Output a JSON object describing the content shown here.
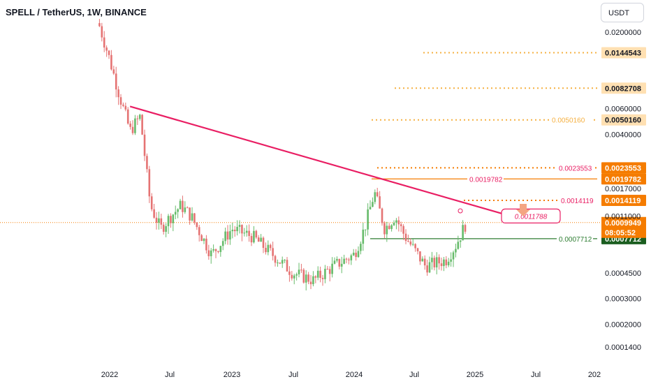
{
  "header": {
    "title": "SPELL / TetherUS, 1W, BINANCE",
    "currency": "USDT"
  },
  "colors": {
    "up": "#26a69a",
    "down": "#ef5350",
    "upSoft": "#66bb6a",
    "downSoft": "#e57373",
    "trend": "#e91e63",
    "orange": "#f57c00",
    "gold": "#f5b041",
    "pink": "#e91e63",
    "green": "#2e7d32",
    "darkgreen": "#1b5e20"
  },
  "chart_data": {
    "type": "candlestick",
    "scale": "log",
    "ylim": [
      0.00012,
      0.026
    ],
    "x_ticks": [
      "2022",
      "Jul",
      "2023",
      "Jul",
      "2024",
      "Jul",
      "2025",
      "Jul",
      "202"
    ],
    "y_ticks": [
      "0.0200000",
      "0.0060000",
      "0.0040000",
      "0.0017000",
      "0.0011000",
      "0.0004500",
      "0.0003000",
      "0.0002000",
      "0.0001400"
    ],
    "y_tick_values": [
      0.02,
      0.006,
      0.004,
      0.0017,
      0.0011,
      0.00045,
      0.0003,
      0.0002,
      0.00014
    ],
    "price_path": [
      {
        "date": "2021-12",
        "price": 0.022
      },
      {
        "date": "2022-01",
        "price": 0.013
      },
      {
        "date": "2022-02",
        "price": 0.0072
      },
      {
        "date": "2022-03",
        "price": 0.0042
      },
      {
        "date": "2022-04",
        "price": 0.0053
      },
      {
        "date": "2022-05",
        "price": 0.0013
      },
      {
        "date": "2022-06",
        "price": 0.0009
      },
      {
        "date": "2022-07",
        "price": 0.0011
      },
      {
        "date": "2022-08",
        "price": 0.0013
      },
      {
        "date": "2022-09",
        "price": 0.0011
      },
      {
        "date": "2022-11",
        "price": 0.0006
      },
      {
        "date": "2023-01",
        "price": 0.0009
      },
      {
        "date": "2023-03",
        "price": 0.0008
      },
      {
        "date": "2023-05",
        "price": 0.0006
      },
      {
        "date": "2023-07",
        "price": 0.00045
      },
      {
        "date": "2023-09",
        "price": 0.0004
      },
      {
        "date": "2023-11",
        "price": 0.0005
      },
      {
        "date": "2024-01",
        "price": 0.0006
      },
      {
        "date": "2024-02",
        "price": 0.0009
      },
      {
        "date": "2024-03",
        "price": 0.0016
      },
      {
        "date": "2024-04",
        "price": 0.0009
      },
      {
        "date": "2024-05",
        "price": 0.0011
      },
      {
        "date": "2024-06",
        "price": 0.0008
      },
      {
        "date": "2024-08",
        "price": 0.0005
      },
      {
        "date": "2024-10",
        "price": 0.00055
      },
      {
        "date": "2024-11",
        "price": 0.0007
      },
      {
        "date": "2024-12",
        "price": 0.00099
      }
    ],
    "trendline": {
      "from": {
        "date": "2022-03",
        "price": 0.0062
      },
      "to": {
        "date": "2025-04",
        "price": 0.00112
      }
    },
    "levels": [
      {
        "price": 0.0144543,
        "label": "0.0144543",
        "style": "gold"
      },
      {
        "price": 0.0082708,
        "label": "0.0082708",
        "style": "gold"
      },
      {
        "price": 0.005016,
        "label": "0.0050160",
        "style": "gold"
      },
      {
        "price": 0.0023553,
        "label": "0.0023553",
        "style": "orange"
      },
      {
        "price": 0.0019782,
        "label": "0.0019782",
        "style": "orange"
      },
      {
        "price": 0.0014119,
        "label": "0.0014119",
        "style": "orange"
      },
      {
        "price": 0.0007712,
        "label": "0.0007712",
        "style": "green"
      }
    ],
    "current_price": {
      "price": 0.0009949,
      "label": "0.0009949",
      "countdown": "08:05:52"
    },
    "annotation": {
      "text": "0.0011788",
      "price": 0.0011788
    }
  }
}
